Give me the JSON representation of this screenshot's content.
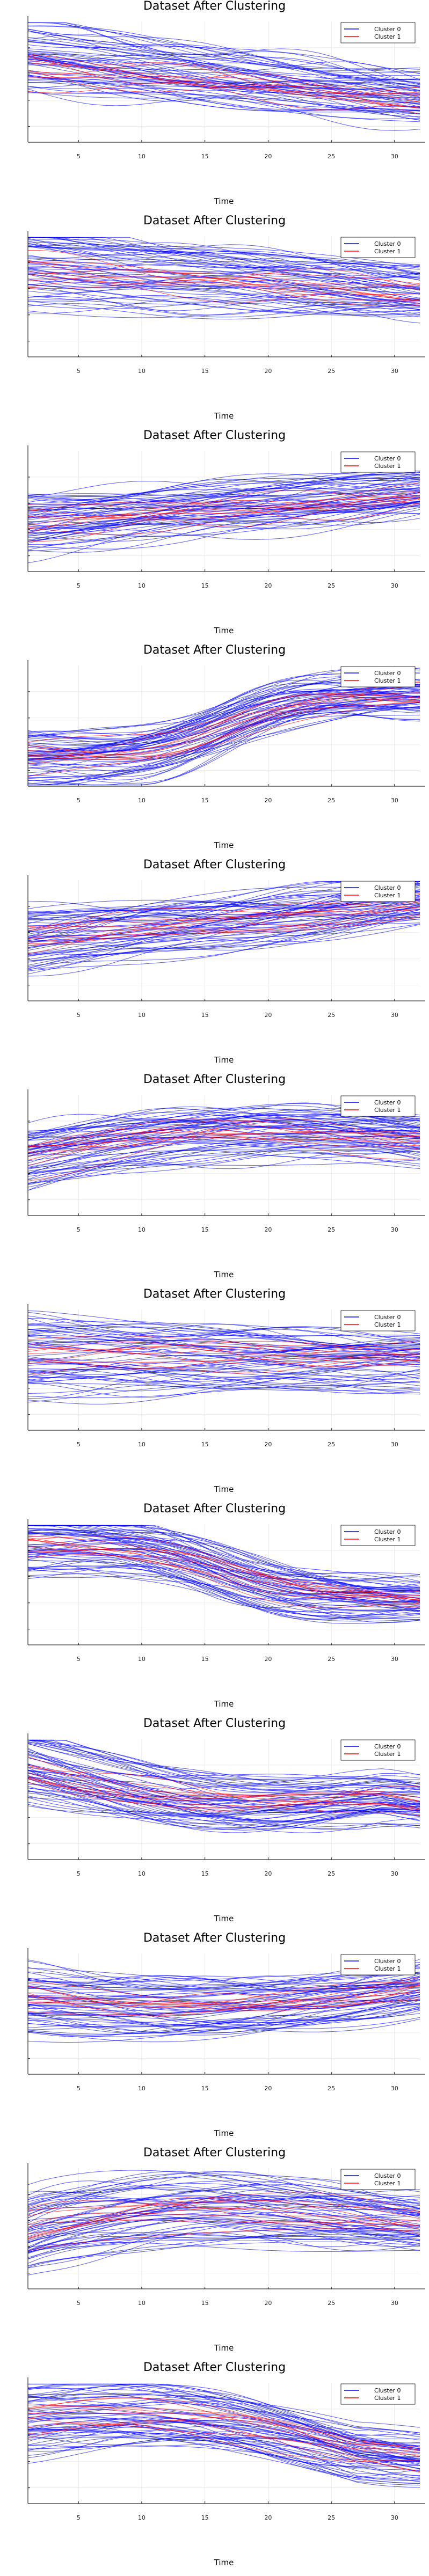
{
  "colors": {
    "cluster0": "#0000ff",
    "cluster1": "#ff0000",
    "grid": "#e6e6e6",
    "axis": "#000000"
  },
  "chart_data": [
    {
      "type": "line",
      "title": "Dataset After Clustering",
      "xlabel": "Time",
      "ylabel": "",
      "x": [
        1,
        2,
        3,
        4,
        5,
        6,
        7,
        8,
        9,
        10,
        11,
        12,
        13,
        14,
        15,
        16,
        17,
        18,
        19,
        20,
        21,
        22,
        23,
        24,
        25,
        26,
        27,
        28,
        29,
        30,
        31,
        32
      ],
      "xlim": [
        1,
        32
      ],
      "xticks": [
        5,
        10,
        15,
        20,
        25,
        30
      ],
      "ylim": [
        -2.6,
        2.0
      ],
      "grid": true,
      "legend_position": "top-right",
      "legend": [
        "Cluster 0",
        "Cluster 1"
      ],
      "series": [
        {
          "name": "Cluster 0",
          "color": "#0000ff",
          "count": 60,
          "shape": "decreasing",
          "start": 0.6,
          "end": -0.9,
          "spread": 1.1
        },
        {
          "name": "Cluster 1",
          "color": "#ff0000",
          "count": 10,
          "shape": "decreasing",
          "start": 0.3,
          "end": -1.0,
          "spread": 0.5
        }
      ]
    },
    {
      "type": "line",
      "title": "Dataset After Clustering",
      "xlabel": "Time",
      "ylabel": "",
      "x": [
        1,
        2,
        3,
        4,
        5,
        6,
        7,
        8,
        9,
        10,
        11,
        12,
        13,
        14,
        15,
        16,
        17,
        18,
        19,
        20,
        21,
        22,
        23,
        24,
        25,
        26,
        27,
        28,
        29,
        30,
        31,
        32
      ],
      "xlim": [
        1,
        32
      ],
      "xticks": [
        5,
        10,
        15,
        20,
        25,
        30
      ],
      "ylim": [
        -2.6,
        2.0
      ],
      "grid": true,
      "legend_position": "top-right",
      "legend": [
        "Cluster 0",
        "Cluster 1"
      ],
      "series": [
        {
          "name": "Cluster 0",
          "color": "#0000ff",
          "count": 60,
          "shape": "decreasing",
          "start": 0.8,
          "end": -0.2,
          "spread": 1.2
        },
        {
          "name": "Cluster 1",
          "color": "#ff0000",
          "count": 10,
          "shape": "decreasing",
          "start": 0.6,
          "end": -0.3,
          "spread": 0.6
        }
      ]
    },
    {
      "type": "line",
      "title": "Dataset After Clustering",
      "xlabel": "Time",
      "ylabel": "",
      "x": [
        1,
        2,
        3,
        4,
        5,
        6,
        7,
        8,
        9,
        10,
        11,
        12,
        13,
        14,
        15,
        16,
        17,
        18,
        19,
        20,
        21,
        22,
        23,
        24,
        25,
        26,
        27,
        28,
        29,
        30,
        31,
        32
      ],
      "xlim": [
        1,
        32
      ],
      "xticks": [
        5,
        10,
        15,
        20,
        25,
        30
      ],
      "ylim": [
        -2.6,
        2.0
      ],
      "grid": true,
      "legend_position": "top-right",
      "legend": [
        "Cluster 0",
        "Cluster 1"
      ],
      "series": [
        {
          "name": "Cluster 0",
          "color": "#0000ff",
          "count": 60,
          "shape": "increasing",
          "start": -0.7,
          "end": 0.4,
          "spread": 1.0
        },
        {
          "name": "Cluster 1",
          "color": "#ff0000",
          "count": 10,
          "shape": "increasing",
          "start": -0.6,
          "end": 0.3,
          "spread": 0.5
        }
      ]
    },
    {
      "type": "line",
      "title": "Dataset After Clustering",
      "xlabel": "Time",
      "ylabel": "",
      "x": [
        1,
        2,
        3,
        4,
        5,
        6,
        7,
        8,
        9,
        10,
        11,
        12,
        13,
        14,
        15,
        16,
        17,
        18,
        19,
        20,
        21,
        22,
        23,
        24,
        25,
        26,
        27,
        28,
        29,
        30,
        31,
        32
      ],
      "xlim": [
        1,
        32
      ],
      "xticks": [
        5,
        10,
        15,
        20,
        25,
        30
      ],
      "ylim": [
        -2.6,
        2.0
      ],
      "grid": true,
      "legend_position": "top-right",
      "legend": [
        "Cluster 0",
        "Cluster 1"
      ],
      "series": [
        {
          "name": "Cluster 0",
          "color": "#0000ff",
          "count": 60,
          "shape": "sigmoid-up",
          "start": -1.6,
          "end": 0.9,
          "spread": 0.9
        },
        {
          "name": "Cluster 1",
          "color": "#ff0000",
          "count": 10,
          "shape": "sigmoid-up",
          "start": -1.5,
          "end": 0.8,
          "spread": 0.5
        }
      ]
    },
    {
      "type": "line",
      "title": "Dataset After Clustering",
      "xlabel": "Time",
      "ylabel": "",
      "x": [
        1,
        2,
        3,
        4,
        5,
        6,
        7,
        8,
        9,
        10,
        11,
        12,
        13,
        14,
        15,
        16,
        17,
        18,
        19,
        20,
        21,
        22,
        23,
        24,
        25,
        26,
        27,
        28,
        29,
        30,
        31,
        32
      ],
      "xlim": [
        1,
        32
      ],
      "xticks": [
        5,
        10,
        15,
        20,
        25,
        30
      ],
      "ylim": [
        -2.6,
        2.0
      ],
      "grid": true,
      "legend_position": "top-right",
      "legend": [
        "Cluster 0",
        "Cluster 1"
      ],
      "series": [
        {
          "name": "Cluster 0",
          "color": "#0000ff",
          "count": 60,
          "shape": "increasing",
          "start": -0.4,
          "end": 1.2,
          "spread": 1.0
        },
        {
          "name": "Cluster 1",
          "color": "#ff0000",
          "count": 10,
          "shape": "increasing",
          "start": -0.3,
          "end": 1.1,
          "spread": 0.5
        }
      ]
    },
    {
      "type": "line",
      "title": "Dataset After Clustering",
      "xlabel": "Time",
      "ylabel": "",
      "x": [
        1,
        2,
        3,
        4,
        5,
        6,
        7,
        8,
        9,
        10,
        11,
        12,
        13,
        14,
        15,
        16,
        17,
        18,
        19,
        20,
        21,
        22,
        23,
        24,
        25,
        26,
        27,
        28,
        29,
        30,
        31,
        32
      ],
      "xlim": [
        1,
        32
      ],
      "xticks": [
        5,
        10,
        15,
        20,
        25,
        30
      ],
      "ylim": [
        -2.6,
        2.0
      ],
      "grid": true,
      "legend_position": "top-right",
      "legend": [
        "Cluster 0",
        "Cluster 1"
      ],
      "series": [
        {
          "name": "Cluster 0",
          "color": "#0000ff",
          "count": 60,
          "shape": "hump",
          "start": -0.5,
          "end": 0.2,
          "spread": 1.0
        },
        {
          "name": "Cluster 1",
          "color": "#ff0000",
          "count": 10,
          "shape": "hump",
          "start": -0.4,
          "end": 0.1,
          "spread": 0.5
        }
      ]
    },
    {
      "type": "line",
      "title": "Dataset After Clustering",
      "xlabel": "Time",
      "ylabel": "",
      "x": [
        1,
        2,
        3,
        4,
        5,
        6,
        7,
        8,
        9,
        10,
        11,
        12,
        13,
        14,
        15,
        16,
        17,
        18,
        19,
        20,
        21,
        22,
        23,
        24,
        25,
        26,
        27,
        28,
        29,
        30,
        31,
        32
      ],
      "xlim": [
        1,
        32
      ],
      "xticks": [
        5,
        10,
        15,
        20,
        25,
        30
      ],
      "ylim": [
        -2.6,
        2.0
      ],
      "grid": true,
      "legend_position": "top-right",
      "legend": [
        "Cluster 0",
        "Cluster 1"
      ],
      "series": [
        {
          "name": "Cluster 0",
          "color": "#0000ff",
          "count": 60,
          "shape": "flat",
          "start": 0.1,
          "end": 0.0,
          "spread": 1.3
        },
        {
          "name": "Cluster 1",
          "color": "#ff0000",
          "count": 10,
          "shape": "flat",
          "start": 0.1,
          "end": 0.1,
          "spread": 0.6
        }
      ]
    },
    {
      "type": "line",
      "title": "Dataset After Clustering",
      "xlabel": "Time",
      "ylabel": "",
      "x": [
        1,
        2,
        3,
        4,
        5,
        6,
        7,
        8,
        9,
        10,
        11,
        12,
        13,
        14,
        15,
        16,
        17,
        18,
        19,
        20,
        21,
        22,
        23,
        24,
        25,
        26,
        27,
        28,
        29,
        30,
        31,
        32
      ],
      "xlim": [
        1,
        32
      ],
      "xticks": [
        5,
        10,
        15,
        20,
        25,
        30
      ],
      "ylim": [
        -2.6,
        2.0
      ],
      "grid": true,
      "legend_position": "top-right",
      "legend": [
        "Cluster 0",
        "Cluster 1"
      ],
      "series": [
        {
          "name": "Cluster 0",
          "color": "#0000ff",
          "count": 60,
          "shape": "sigmoid-down",
          "start": 1.2,
          "end": -0.9,
          "spread": 0.9
        },
        {
          "name": "Cluster 1",
          "color": "#ff0000",
          "count": 10,
          "shape": "sigmoid-down",
          "start": 1.1,
          "end": -1.0,
          "spread": 0.4
        }
      ]
    },
    {
      "type": "line",
      "title": "Dataset After Clustering",
      "xlabel": "Time",
      "ylabel": "",
      "x": [
        1,
        2,
        3,
        4,
        5,
        6,
        7,
        8,
        9,
        10,
        11,
        12,
        13,
        14,
        15,
        16,
        17,
        18,
        19,
        20,
        21,
        22,
        23,
        24,
        25,
        26,
        27,
        28,
        29,
        30,
        31,
        32
      ],
      "xlim": [
        1,
        32
      ],
      "xticks": [
        5,
        10,
        15,
        20,
        25,
        30
      ],
      "ylim": [
        -2.6,
        2.0
      ],
      "grid": true,
      "legend_position": "top-right",
      "legend": [
        "Cluster 0",
        "Cluster 1"
      ],
      "series": [
        {
          "name": "Cluster 0",
          "color": "#0000ff",
          "count": 60,
          "shape": "valley",
          "start": 1.0,
          "end": -0.4,
          "spread": 1.0
        },
        {
          "name": "Cluster 1",
          "color": "#ff0000",
          "count": 10,
          "shape": "valley",
          "start": 0.8,
          "end": -0.5,
          "spread": 0.5
        }
      ]
    },
    {
      "type": "line",
      "title": "Dataset After Clustering",
      "xlabel": "Time",
      "ylabel": "",
      "x": [
        1,
        2,
        3,
        4,
        5,
        6,
        7,
        8,
        9,
        10,
        11,
        12,
        13,
        14,
        15,
        16,
        17,
        18,
        19,
        20,
        21,
        22,
        23,
        24,
        25,
        26,
        27,
        28,
        29,
        30,
        31,
        32
      ],
      "xlim": [
        1,
        32
      ],
      "xticks": [
        5,
        10,
        15,
        20,
        25,
        30
      ],
      "ylim": [
        -2.6,
        2.0
      ],
      "grid": true,
      "legend_position": "top-right",
      "legend": [
        "Cluster 0",
        "Cluster 1"
      ],
      "series": [
        {
          "name": "Cluster 0",
          "color": "#0000ff",
          "count": 60,
          "shape": "valley-up",
          "start": 0.2,
          "end": 0.8,
          "spread": 1.0
        },
        {
          "name": "Cluster 1",
          "color": "#ff0000",
          "count": 10,
          "shape": "valley-up",
          "start": 0.1,
          "end": 0.7,
          "spread": 0.5
        }
      ]
    },
    {
      "type": "line",
      "title": "Dataset After Clustering",
      "xlabel": "Time",
      "ylabel": "",
      "x": [
        1,
        2,
        3,
        4,
        5,
        6,
        7,
        8,
        9,
        10,
        11,
        12,
        13,
        14,
        15,
        16,
        17,
        18,
        19,
        20,
        21,
        22,
        23,
        24,
        25,
        26,
        27,
        28,
        29,
        30,
        31,
        32
      ],
      "xlim": [
        1,
        32
      ],
      "xticks": [
        5,
        10,
        15,
        20,
        25,
        30
      ],
      "ylim": [
        -2.6,
        2.0
      ],
      "grid": true,
      "legend_position": "top-right",
      "legend": [
        "Cluster 0",
        "Cluster 1"
      ],
      "series": [
        {
          "name": "Cluster 0",
          "color": "#0000ff",
          "count": 60,
          "shape": "late-hump",
          "start": -0.4,
          "end": -0.1,
          "spread": 1.2
        },
        {
          "name": "Cluster 1",
          "color": "#ff0000",
          "count": 10,
          "shape": "late-hump",
          "start": -0.3,
          "end": -0.2,
          "spread": 0.6
        }
      ]
    },
    {
      "type": "line",
      "title": "Dataset After Clustering",
      "xlabel": "Time",
      "ylabel": "",
      "x": [
        1,
        2,
        3,
        4,
        5,
        6,
        7,
        8,
        9,
        10,
        11,
        12,
        13,
        14,
        15,
        16,
        17,
        18,
        19,
        20,
        21,
        22,
        23,
        24,
        25,
        26,
        27,
        28,
        29,
        30,
        31,
        32
      ],
      "xlim": [
        1,
        32
      ],
      "xticks": [
        5,
        10,
        15,
        20,
        25,
        30
      ],
      "ylim": [
        -2.6,
        2.0
      ],
      "grid": true,
      "legend_position": "top-right",
      "legend": [
        "Cluster 0",
        "Cluster 1"
      ],
      "series": [
        {
          "name": "Cluster 0",
          "color": "#0000ff",
          "count": 60,
          "shape": "hump-down",
          "start": 0.6,
          "end": -0.9,
          "spread": 1.0
        },
        {
          "name": "Cluster 1",
          "color": "#ff0000",
          "count": 10,
          "shape": "hump-down",
          "start": 0.5,
          "end": -1.0,
          "spread": 0.5
        }
      ]
    }
  ]
}
